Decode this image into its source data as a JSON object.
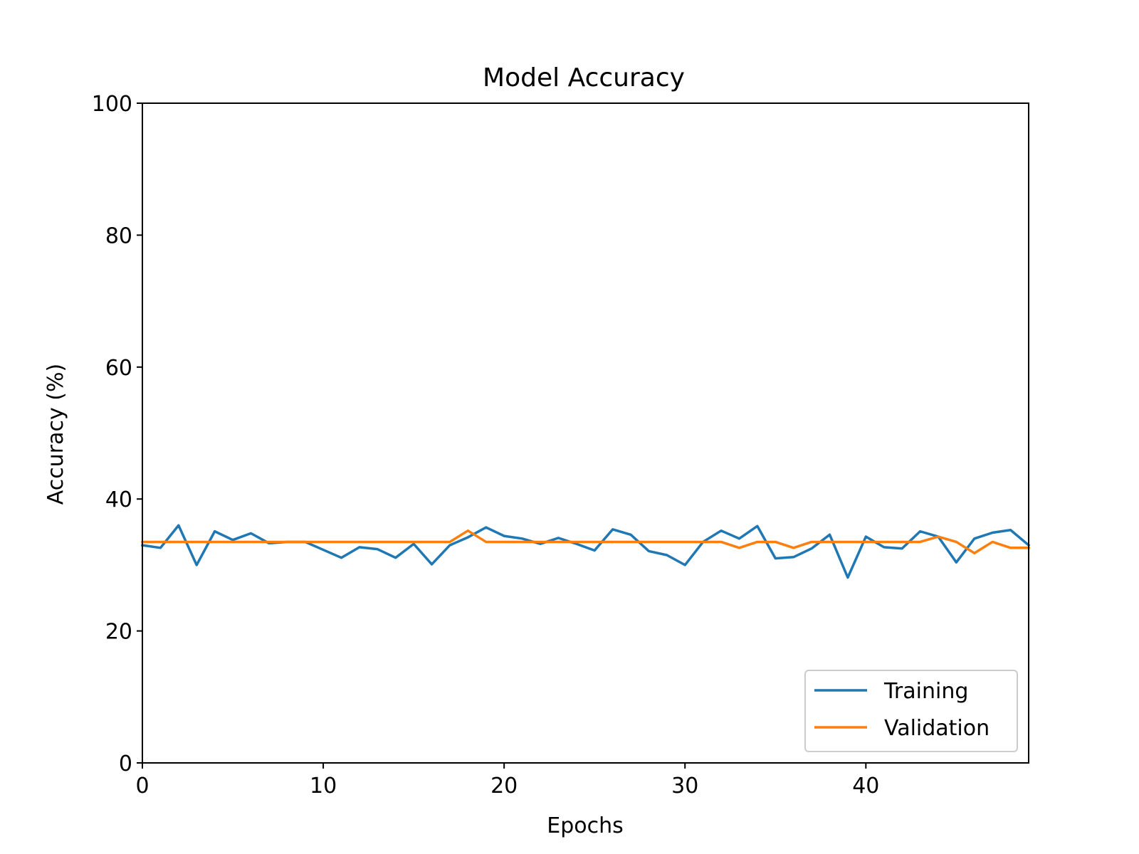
{
  "chart_data": {
    "type": "line",
    "title": "Model Accuracy",
    "xlabel": "Epochs",
    "ylabel": "Accuracy (%)",
    "xlim": [
      0,
      49
    ],
    "ylim": [
      0,
      100
    ],
    "xticks": [
      0,
      10,
      20,
      30,
      40
    ],
    "yticks": [
      0,
      20,
      40,
      60,
      80,
      100
    ],
    "grid": false,
    "legend_position": "lower-right",
    "x": [
      0,
      1,
      2,
      3,
      4,
      5,
      6,
      7,
      8,
      9,
      10,
      11,
      12,
      13,
      14,
      15,
      16,
      17,
      18,
      19,
      20,
      21,
      22,
      23,
      24,
      25,
      26,
      27,
      28,
      29,
      30,
      31,
      32,
      33,
      34,
      35,
      36,
      37,
      38,
      39,
      40,
      41,
      42,
      43,
      44,
      45,
      46,
      47,
      48,
      49
    ],
    "series": [
      {
        "name": "Training",
        "color": "#1f77b4",
        "values": [
          33.0,
          32.6,
          36.0,
          30.0,
          35.1,
          33.8,
          34.8,
          33.3,
          33.5,
          33.5,
          32.3,
          31.1,
          32.7,
          32.4,
          31.1,
          33.2,
          30.1,
          33.0,
          34.2,
          35.7,
          34.4,
          34.0,
          33.2,
          34.1,
          33.2,
          32.2,
          35.4,
          34.6,
          32.1,
          31.5,
          30.0,
          33.5,
          35.2,
          34.0,
          35.9,
          31.0,
          31.2,
          32.5,
          34.6,
          28.1,
          34.3,
          32.7,
          32.5,
          35.1,
          34.3,
          30.4,
          34.0,
          34.9,
          35.3,
          33.0
        ]
      },
      {
        "name": "Validation",
        "color": "#ff7f0e",
        "values": [
          33.5,
          33.5,
          33.5,
          33.5,
          33.5,
          33.5,
          33.5,
          33.5,
          33.5,
          33.5,
          33.5,
          33.5,
          33.5,
          33.5,
          33.5,
          33.5,
          33.5,
          33.5,
          35.2,
          33.5,
          33.5,
          33.5,
          33.5,
          33.5,
          33.5,
          33.5,
          33.5,
          33.5,
          33.5,
          33.5,
          33.5,
          33.5,
          33.5,
          32.6,
          33.5,
          33.5,
          32.6,
          33.5,
          33.5,
          33.5,
          33.5,
          33.5,
          33.5,
          33.5,
          34.3,
          33.5,
          31.8,
          33.5,
          32.6,
          32.6
        ]
      }
    ]
  }
}
